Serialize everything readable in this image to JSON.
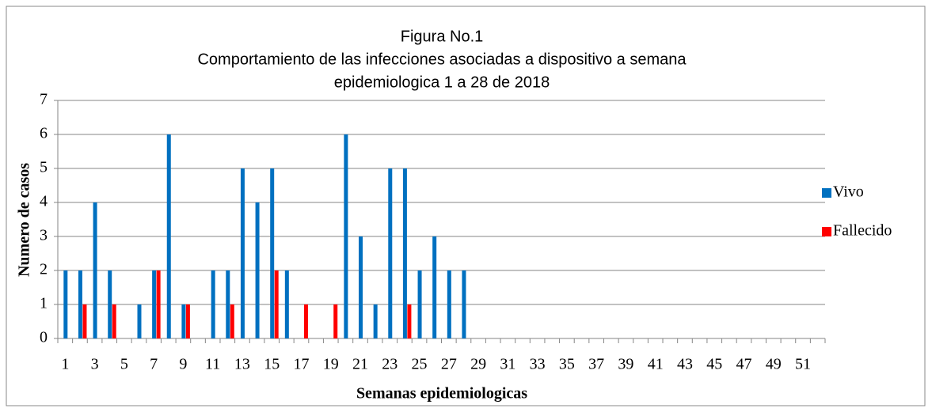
{
  "chart_data": {
    "type": "bar",
    "title": [
      "Figura No.1",
      "Comportamiento de las infecciones asociadas a dispositivo a semana",
      "epidemiologica  1 a 28 de 2018"
    ],
    "x_label": "Semanas epidemiologicas",
    "y_label": "Numero de casos",
    "categories": [
      "1",
      null,
      "3",
      null,
      "5",
      null,
      "7",
      null,
      "9",
      null,
      "11",
      null,
      "13",
      null,
      "15",
      null,
      "17",
      null,
      "19",
      null,
      "21",
      null,
      "23",
      null,
      "25",
      null,
      "27",
      null,
      "29",
      null,
      "31",
      null,
      "33",
      null,
      "35",
      null,
      "37",
      null,
      "39",
      null,
      "41",
      null,
      "43",
      null,
      "45",
      null,
      "47",
      null,
      "49",
      null,
      "51",
      null
    ],
    "series": [
      {
        "name": "Vivo",
        "color": "#0070c0",
        "values": [
          2,
          2,
          4,
          2,
          0,
          1,
          2,
          6,
          1,
          0,
          2,
          2,
          5,
          4,
          5,
          2,
          0,
          0,
          0,
          6,
          3,
          1,
          5,
          5,
          2,
          3,
          2,
          2,
          0,
          0,
          0,
          0,
          0,
          0,
          0,
          0,
          0,
          0,
          0,
          0,
          0,
          0,
          0,
          0,
          0,
          0,
          0,
          0,
          0,
          0,
          0,
          0
        ]
      },
      {
        "name": "Fallecido",
        "color": "#ff0000",
        "values": [
          0,
          1,
          0,
          1,
          0,
          0,
          2,
          0,
          1,
          0,
          0,
          1,
          0,
          0,
          2,
          0,
          1,
          0,
          1,
          0,
          0,
          0,
          0,
          1,
          0,
          0,
          0,
          0,
          0,
          0,
          0,
          0,
          0,
          0,
          0,
          0,
          0,
          0,
          0,
          0,
          0,
          0,
          0,
          0,
          0,
          0,
          0,
          0,
          0,
          0,
          0,
          0
        ]
      }
    ],
    "ylim": [
      0,
      7
    ],
    "yticks": [
      0,
      1,
      2,
      3,
      4,
      5,
      6,
      7
    ],
    "grid": true,
    "legend": "right"
  }
}
